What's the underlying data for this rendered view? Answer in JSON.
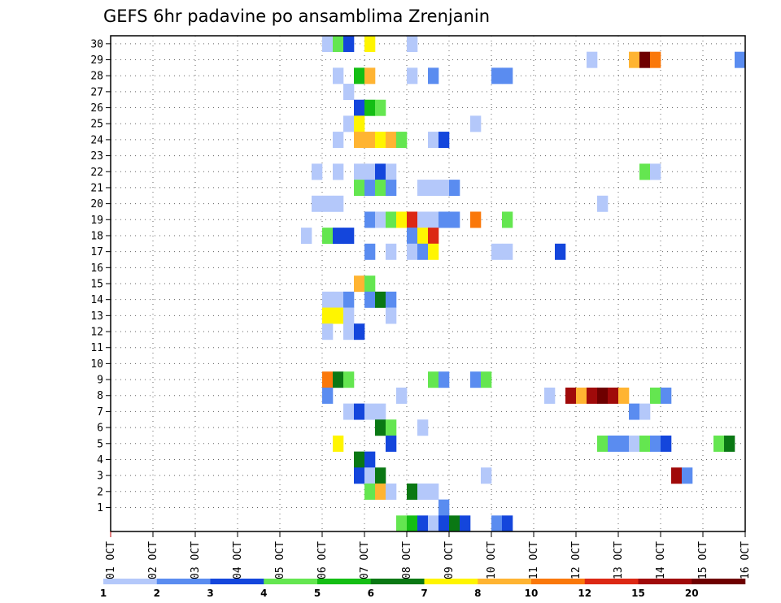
{
  "chart_data": {
    "type": "heatmap",
    "title": "GEFS 6hr padavine po ansamblima Zrenjanin",
    "xlabel": "",
    "ylabel": "",
    "x_tick_labels": [
      "01 OCT",
      "02 OCT",
      "03 OCT",
      "04 OCT",
      "05 OCT",
      "06 OCT",
      "07 OCT",
      "08 OCT",
      "09 OCT",
      "10 OCT",
      "11 OCT",
      "12 OCT",
      "13 OCT",
      "14 OCT",
      "15 OCT",
      "16 OCT"
    ],
    "y_tick_labels": [
      1,
      2,
      3,
      4,
      5,
      6,
      7,
      8,
      9,
      10,
      11,
      12,
      13,
      14,
      15,
      16,
      17,
      18,
      19,
      20,
      21,
      22,
      23,
      24,
      25,
      26,
      27,
      28,
      29,
      30
    ],
    "xlim_days": [
      0,
      15
    ],
    "ylim_members": [
      0,
      30
    ],
    "time_step_hours": 6,
    "grid": true,
    "legend": {
      "placement": "bottom",
      "bins": [
        {
          "color": "#b4c8fa"
        },
        {
          "color": "#5a8cf0"
        },
        {
          "color": "#1446dc"
        },
        {
          "color": "#64e650"
        },
        {
          "color": "#14be14"
        },
        {
          "color": "#0a7814"
        },
        {
          "color": "#fff500"
        },
        {
          "color": "#ffb432"
        },
        {
          "color": "#fa780a"
        },
        {
          "color": "#dc2814"
        },
        {
          "color": "#a00a0a"
        },
        {
          "color": "#6e0000"
        }
      ],
      "labels": [
        "1",
        "2",
        "3",
        "4",
        "5",
        "6",
        "7",
        "8",
        "10",
        "12",
        "15",
        "20"
      ]
    },
    "series": [
      {
        "member": 30,
        "cells": [
          [
            20,
            1
          ],
          [
            21,
            4
          ],
          [
            22,
            3
          ],
          [
            24,
            7
          ],
          [
            28,
            1
          ]
        ]
      },
      {
        "member": 29,
        "cells": [
          [
            45,
            1
          ],
          [
            49,
            8
          ],
          [
            50,
            12
          ],
          [
            51,
            9
          ],
          [
            59,
            2
          ]
        ]
      },
      {
        "member": 28,
        "cells": [
          [
            21,
            1
          ],
          [
            23,
            5
          ],
          [
            24,
            8
          ],
          [
            28,
            1
          ],
          [
            30,
            2
          ],
          [
            36,
            2
          ],
          [
            37,
            2
          ]
        ]
      },
      {
        "member": 27,
        "cells": [
          [
            22,
            1
          ]
        ]
      },
      {
        "member": 26,
        "cells": [
          [
            23,
            3
          ],
          [
            24,
            5
          ],
          [
            25,
            4
          ]
        ]
      },
      {
        "member": 25,
        "cells": [
          [
            22,
            1
          ],
          [
            23,
            7
          ],
          [
            34,
            1
          ]
        ]
      },
      {
        "member": 24,
        "cells": [
          [
            21,
            1
          ],
          [
            23,
            8
          ],
          [
            24,
            8
          ],
          [
            25,
            7
          ],
          [
            26,
            8
          ],
          [
            27,
            4
          ],
          [
            30,
            1
          ],
          [
            31,
            3
          ]
        ]
      },
      {
        "member": 22,
        "cells": [
          [
            19,
            1
          ],
          [
            21,
            1
          ],
          [
            23,
            1
          ],
          [
            24,
            1
          ],
          [
            25,
            3
          ],
          [
            26,
            1
          ],
          [
            50,
            4
          ],
          [
            51,
            1
          ]
        ]
      },
      {
        "member": 21,
        "cells": [
          [
            23,
            4
          ],
          [
            24,
            2
          ],
          [
            25,
            4
          ],
          [
            26,
            2
          ],
          [
            29,
            1
          ],
          [
            30,
            1
          ],
          [
            31,
            1
          ],
          [
            32,
            2
          ]
        ]
      },
      {
        "member": 20,
        "cells": [
          [
            19,
            1
          ],
          [
            20,
            1
          ],
          [
            21,
            1
          ],
          [
            46,
            1
          ]
        ]
      },
      {
        "member": 19,
        "cells": [
          [
            24,
            2
          ],
          [
            25,
            1
          ],
          [
            26,
            4
          ],
          [
            27,
            7
          ],
          [
            28,
            10
          ],
          [
            29,
            1
          ],
          [
            30,
            1
          ],
          [
            31,
            2
          ],
          [
            32,
            2
          ],
          [
            34,
            9
          ],
          [
            37,
            4
          ]
        ]
      },
      {
        "member": 18,
        "cells": [
          [
            18,
            1
          ],
          [
            20,
            4
          ],
          [
            21,
            3
          ],
          [
            22,
            3
          ],
          [
            28,
            2
          ],
          [
            29,
            7
          ],
          [
            30,
            10
          ]
        ]
      },
      {
        "member": 17,
        "cells": [
          [
            24,
            2
          ],
          [
            26,
            1
          ],
          [
            28,
            1
          ],
          [
            29,
            2
          ],
          [
            30,
            7
          ],
          [
            36,
            1
          ],
          [
            37,
            1
          ],
          [
            42,
            3
          ]
        ]
      },
      {
        "member": 15,
        "cells": [
          [
            23,
            8
          ],
          [
            24,
            4
          ]
        ]
      },
      {
        "member": 14,
        "cells": [
          [
            20,
            1
          ],
          [
            21,
            1
          ],
          [
            22,
            2
          ],
          [
            24,
            2
          ],
          [
            25,
            6
          ],
          [
            26,
            2
          ]
        ]
      },
      {
        "member": 13,
        "cells": [
          [
            20,
            7
          ],
          [
            21,
            7
          ],
          [
            22,
            1
          ],
          [
            26,
            1
          ]
        ]
      },
      {
        "member": 12,
        "cells": [
          [
            20,
            1
          ],
          [
            22,
            1
          ],
          [
            23,
            3
          ]
        ]
      },
      {
        "member": 9,
        "cells": [
          [
            20,
            9
          ],
          [
            21,
            6
          ],
          [
            22,
            4
          ],
          [
            30,
            4
          ],
          [
            31,
            2
          ],
          [
            34,
            2
          ],
          [
            35,
            4
          ]
        ]
      },
      {
        "member": 8,
        "cells": [
          [
            20,
            2
          ],
          [
            27,
            1
          ],
          [
            41,
            1
          ],
          [
            43,
            11
          ],
          [
            44,
            8
          ],
          [
            45,
            11
          ],
          [
            46,
            12
          ],
          [
            47,
            11
          ],
          [
            48,
            8
          ],
          [
            51,
            4
          ],
          [
            52,
            2
          ]
        ]
      },
      {
        "member": 7,
        "cells": [
          [
            22,
            1
          ],
          [
            23,
            3
          ],
          [
            24,
            1
          ],
          [
            25,
            1
          ],
          [
            49,
            2
          ],
          [
            50,
            1
          ]
        ]
      },
      {
        "member": 6,
        "cells": [
          [
            25,
            6
          ],
          [
            26,
            4
          ],
          [
            29,
            1
          ]
        ]
      },
      {
        "member": 5,
        "cells": [
          [
            21,
            7
          ],
          [
            26,
            3
          ],
          [
            46,
            4
          ],
          [
            47,
            2
          ],
          [
            48,
            2
          ],
          [
            49,
            1
          ],
          [
            50,
            4
          ],
          [
            51,
            2
          ],
          [
            52,
            3
          ],
          [
            57,
            4
          ],
          [
            58,
            6
          ]
        ]
      },
      {
        "member": 4,
        "cells": [
          [
            23,
            6
          ],
          [
            24,
            3
          ]
        ]
      },
      {
        "member": 3,
        "cells": [
          [
            23,
            3
          ],
          [
            24,
            1
          ],
          [
            25,
            6
          ],
          [
            35,
            1
          ],
          [
            53,
            11
          ],
          [
            54,
            2
          ]
        ]
      },
      {
        "member": 2,
        "cells": [
          [
            24,
            4
          ],
          [
            25,
            8
          ],
          [
            26,
            1
          ],
          [
            28,
            6
          ],
          [
            29,
            1
          ],
          [
            30,
            1
          ]
        ]
      },
      {
        "member": 1,
        "cells": [
          [
            31,
            2
          ]
        ]
      },
      {
        "member": 0,
        "cells": [
          [
            27,
            4
          ],
          [
            28,
            5
          ],
          [
            29,
            3
          ],
          [
            30,
            1
          ],
          [
            31,
            3
          ],
          [
            32,
            6
          ],
          [
            33,
            3
          ],
          [
            36,
            2
          ],
          [
            37,
            3
          ]
        ]
      }
    ]
  }
}
